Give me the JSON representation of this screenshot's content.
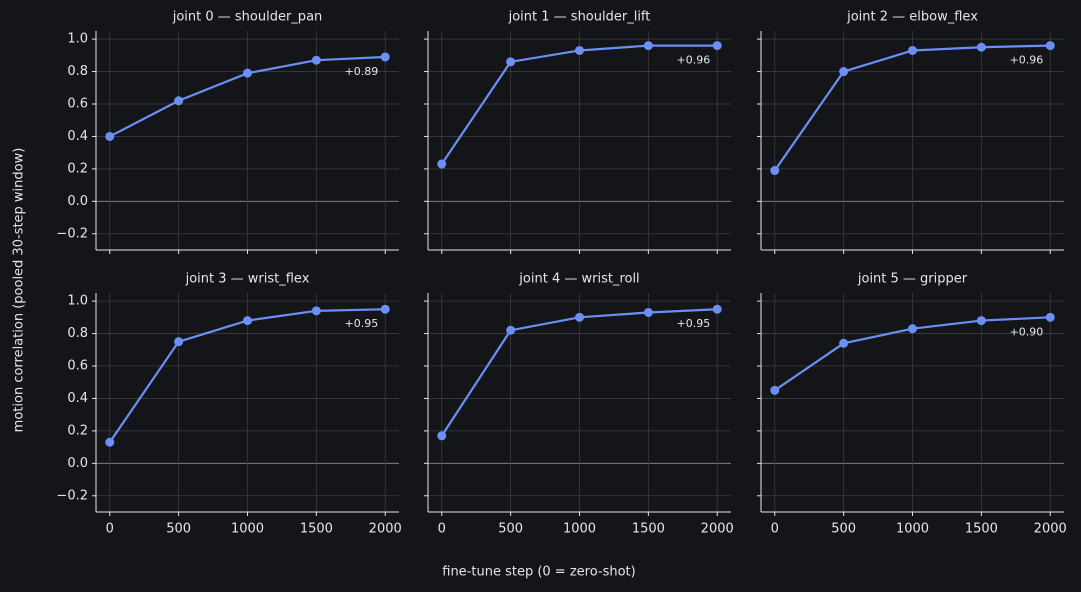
{
  "xlabel": "fine-tune step (0 = zero-shot)",
  "ylabel": "motion correlation (pooled 30-step window)",
  "xlim": [
    -100,
    2100
  ],
  "ylim": [
    -0.3,
    1.05
  ],
  "xticks": [
    0,
    500,
    1000,
    1500,
    2000
  ],
  "yticks": [
    {
      "value": -0.2,
      "label": "−0.2"
    },
    {
      "value": 0,
      "label": "0.0"
    },
    0.2,
    0.4,
    0.6,
    0.8,
    {
      "value": 1,
      "label": "1.0"
    }
  ],
  "grid": true,
  "chart_data": [
    {
      "type": "line",
      "title": "joint 0 — shoulder_pan",
      "x": [
        0,
        500,
        1000,
        1500,
        2000
      ],
      "values": [
        0.4,
        0.62,
        0.79,
        0.87,
        0.89
      ],
      "value_labels": [
        null,
        null,
        null,
        null,
        "+0.89"
      ],
      "color": "#6b8ff5"
    },
    {
      "type": "line",
      "title": "joint 1 — shoulder_lift",
      "x": [
        0,
        500,
        1000,
        1500,
        2000
      ],
      "values": [
        0.23,
        0.86,
        0.93,
        0.96,
        0.96
      ],
      "value_labels": [
        null,
        null,
        null,
        null,
        "+0.96"
      ],
      "color": "#6b8ff5"
    },
    {
      "type": "line",
      "title": "joint 2 — elbow_flex",
      "x": [
        0,
        500,
        1000,
        1500,
        2000
      ],
      "values": [
        0.19,
        0.8,
        0.93,
        0.95,
        0.96
      ],
      "value_labels": [
        null,
        null,
        null,
        null,
        "+0.96"
      ],
      "color": "#6b8ff5"
    },
    {
      "type": "line",
      "title": "joint 3 — wrist_flex",
      "x": [
        0,
        500,
        1000,
        1500,
        2000
      ],
      "values": [
        0.13,
        0.75,
        0.88,
        0.94,
        0.95
      ],
      "value_labels": [
        null,
        null,
        null,
        null,
        "+0.95"
      ],
      "color": "#6b8ff5"
    },
    {
      "type": "line",
      "title": "joint 4 — wrist_roll",
      "x": [
        0,
        500,
        1000,
        1500,
        2000
      ],
      "values": [
        0.17,
        0.82,
        0.9,
        0.93,
        0.95
      ],
      "value_labels": [
        null,
        null,
        null,
        null,
        "+0.95"
      ],
      "color": "#6b8ff5"
    },
    {
      "type": "line",
      "title": "joint 5 — gripper",
      "x": [
        0,
        500,
        1000,
        1500,
        2000
      ],
      "values": [
        0.45,
        0.74,
        0.83,
        0.88,
        0.9
      ],
      "value_labels": [
        null,
        null,
        null,
        null,
        "+0.90"
      ],
      "color": "#6b8ff5"
    }
  ]
}
